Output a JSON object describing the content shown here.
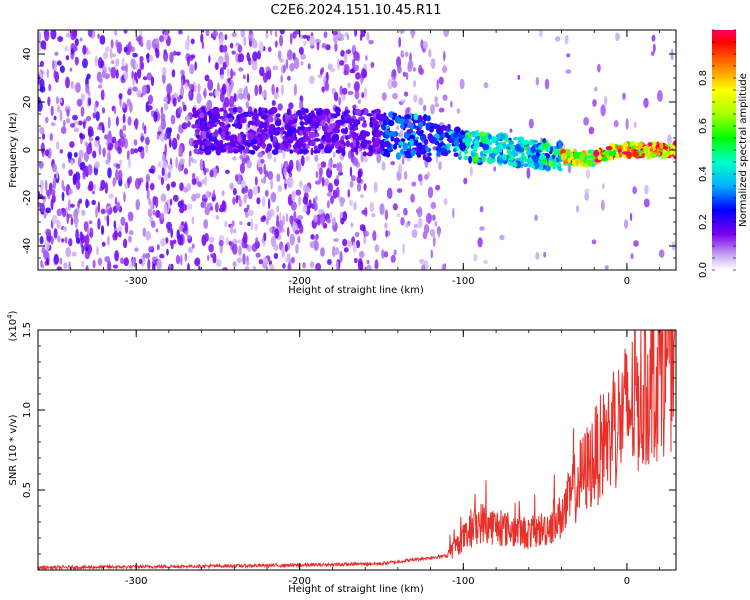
{
  "title": "C2E6.2024.151.10.45.R11",
  "chart_data": [
    {
      "type": "heatmap",
      "xlabel": "Height of straight line (km)",
      "ylabel": "Frequency (Hz)",
      "xlim": [
        -360,
        30
      ],
      "ylim": [
        -50,
        50
      ],
      "x_ticks": [
        -300,
        -200,
        -100,
        0
      ],
      "y_ticks": [
        -40,
        -20,
        0,
        20,
        40
      ],
      "colorbar": {
        "label": "Normalized spectral amplitude",
        "range": [
          0.0,
          1.0
        ],
        "ticks": [
          "0.0",
          "0.2",
          "0.4",
          "0.6",
          "0.8"
        ]
      },
      "ridge": {
        "x": [
          -260,
          -200,
          -180,
          -150,
          -130,
          -110,
          -90,
          -70,
          -50,
          -35,
          -25,
          -15,
          -5,
          0,
          10,
          30
        ],
        "y": [
          8,
          8,
          8,
          7,
          5,
          4,
          1,
          0,
          -2,
          -3,
          -4,
          -2,
          0,
          0,
          0,
          0
        ]
      }
    },
    {
      "type": "line",
      "xlabel": "Height of straight line (km)",
      "ylabel": "SNR (10 * v/v)",
      "y_multiplier": "(x10",
      "y_multiplier_exp": "4",
      "xlim": [
        -360,
        30
      ],
      "ylim": [
        0,
        15000
      ],
      "x_ticks": [
        -300,
        -200,
        -100,
        0
      ],
      "y_ticks": [
        5000,
        10000,
        15000
      ],
      "y_tick_labels": [
        "0.5",
        "1.0",
        "1.5"
      ],
      "series": [
        {
          "color": "#e8302a",
          "x": [
            -360,
            -300,
            -250,
            -200,
            -150,
            -110,
            -100,
            -90,
            -80,
            -70,
            -60,
            -50,
            -40,
            -30,
            -20,
            -10,
            0,
            10,
            20,
            30
          ],
          "y": [
            150,
            200,
            250,
            300,
            400,
            900,
            2000,
            3000,
            2700,
            2500,
            2300,
            2600,
            3300,
            5500,
            7000,
            8500,
            10000,
            11000,
            12500,
            13800
          ]
        }
      ]
    }
  ]
}
